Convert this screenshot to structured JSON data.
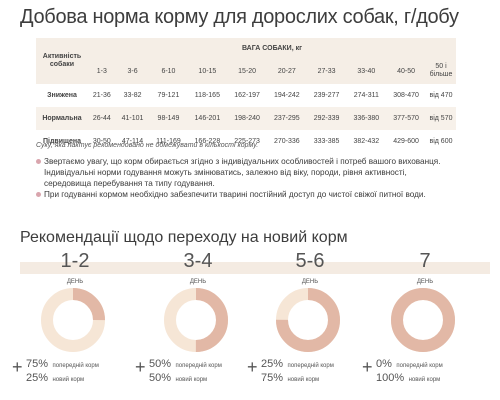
{
  "title": "Добова норма корму для дорослих собак, г/добу",
  "table": {
    "activity_header": "Активність собаки",
    "weight_header": "ВАГА СОБАКИ, кг",
    "columns": [
      "1-3",
      "3-6",
      "6-10",
      "10-15",
      "15-20",
      "20-27",
      "27-33",
      "33-40",
      "40-50",
      "50 і більше"
    ],
    "rows": [
      {
        "label": "Знижена",
        "values": [
          "21-36",
          "33-82",
          "79-121",
          "118-165",
          "162-197",
          "194-242",
          "239-277",
          "274-311",
          "308-470",
          "від 470"
        ]
      },
      {
        "label": "Нормальна",
        "values": [
          "26-44",
          "41-101",
          "98-149",
          "146-201",
          "198-240",
          "237-295",
          "292-339",
          "336-380",
          "377-570",
          "від 570"
        ]
      },
      {
        "label": "Підвищена",
        "values": [
          "30-50",
          "47-114",
          "111-169",
          "166-228",
          "225-273",
          "270-336",
          "333-385",
          "382-432",
          "429-600",
          "від 600"
        ]
      }
    ]
  },
  "note": "Суку, яка лактує рекомендовано не обмежувати в кількості корму.",
  "bullets": [
    "Звертаємо увагу, що корм обирається згідно з індивідуальних особливостей і потреб вашого вихованця. Індивідуальні норми годування можуть змінюватись, залежно від віку, породи, рівня активності, середовища перебування та типу годування.",
    "При годуванні кормом необхідно забезпечити тварині постійний доступ до чистої свіжої питної води."
  ],
  "transition": {
    "title": "Рекомендації щодо переходу на новий корм",
    "steps": [
      {
        "days": "1-2",
        "day_label": "ДЕНЬ",
        "old_pct": "75%",
        "old_label": "попередній корм",
        "new_pct": "25%",
        "new_label": "новий корм",
        "new_share": 0.25
      },
      {
        "days": "3-4",
        "day_label": "ДЕНЬ",
        "old_pct": "50%",
        "old_label": "попередній корм",
        "new_pct": "50%",
        "new_label": "новий корм",
        "new_share": 0.5
      },
      {
        "days": "5-6",
        "day_label": "ДЕНЬ",
        "old_pct": "25%",
        "old_label": "попередній корм",
        "new_pct": "75%",
        "new_label": "новий корм",
        "new_share": 0.75
      },
      {
        "days": "7",
        "day_label": "ДЕНЬ",
        "old_pct": "0%",
        "old_label": "попередній корм",
        "new_pct": "100%",
        "new_label": "новий корм",
        "new_share": 1.0
      }
    ],
    "colors": {
      "old": "#f6e6d6",
      "new": "#e2b8a6",
      "band": "#f4ebe2"
    }
  }
}
